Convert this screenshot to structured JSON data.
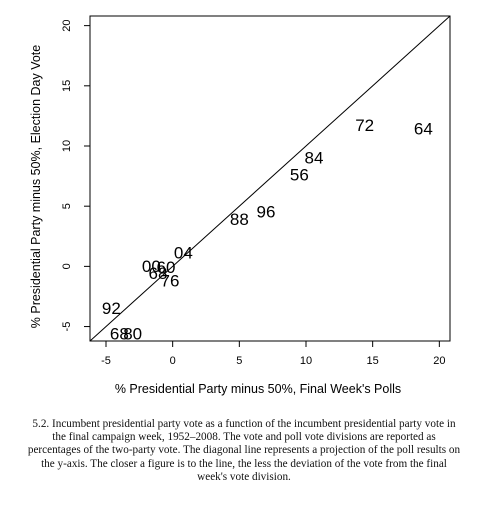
{
  "chart_data": {
    "type": "scatter",
    "title": "",
    "xlabel": "% Presidential Party minus 50%, Final Week's Polls",
    "ylabel": "% Presidential Party minus 50%, Election Day Vote",
    "xlim": [
      -6.2,
      20.8
    ],
    "ylim": [
      -6.2,
      20.8
    ],
    "xticks": [
      -5,
      0,
      5,
      10,
      15,
      20
    ],
    "yticks": [
      -5,
      0,
      5,
      10,
      15,
      20
    ],
    "xtick_labels": [
      "-5",
      "0",
      "5",
      "10",
      "15",
      "20"
    ],
    "ytick_labels": [
      "-5",
      "0",
      "5",
      "10",
      "15",
      "20"
    ],
    "grid": false,
    "diagonal_line": true,
    "point_marker": "year label",
    "points": [
      {
        "label": "64",
        "x": 18.8,
        "y": 11.4
      },
      {
        "label": "72",
        "x": 14.4,
        "y": 11.7
      },
      {
        "label": "84",
        "x": 10.6,
        "y": 9.0
      },
      {
        "label": "56",
        "x": 9.5,
        "y": 7.6
      },
      {
        "label": "96",
        "x": 7.0,
        "y": 4.5
      },
      {
        "label": "88",
        "x": 5.0,
        "y": 3.9
      },
      {
        "label": "04",
        "x": 0.8,
        "y": 1.1
      },
      {
        "label": "00",
        "x": -1.6,
        "y": 0.0
      },
      {
        "label": "60",
        "x": -0.5,
        "y": -0.1
      },
      {
        "label": "68",
        "x": -1.1,
        "y": -0.6
      },
      {
        "label": "76",
        "x": -0.2,
        "y": -1.2
      },
      {
        "label": "92",
        "x": -4.6,
        "y": -3.5
      },
      {
        "label": "68",
        "x": -4.0,
        "y": -5.6
      },
      {
        "label": "80",
        "x": -3.0,
        "y": -5.6
      }
    ]
  },
  "caption": {
    "number": "5.2.",
    "text": "Incumbent presidential party vote as a function of the incumbent presidential party vote in the final campaign week, 1952–2008. The vote and poll vote divisions are reported as percentages of the two-party vote. The diagonal line represents a projection of the poll results on the y-axis. The closer a figure is to the line, the less the deviation of the vote from the final week's vote division."
  }
}
